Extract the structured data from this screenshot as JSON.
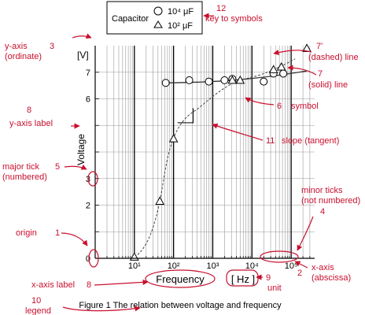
{
  "legend_box": {
    "title": "Capacitor",
    "entries": [
      {
        "symbol": "circle-icon",
        "label": "10⁴ μF"
      },
      {
        "symbol": "triangle-icon",
        "label": "10² μF"
      }
    ]
  },
  "axes": {
    "y_unit": "[V]",
    "y_label": "Voltage",
    "y_ticks": [
      "0",
      "2",
      "3",
      "6",
      "7"
    ],
    "x_label": "Frequency",
    "x_unit": "[ Hz ]",
    "x_ticks": [
      "10¹",
      "10²",
      "10³",
      "10⁴",
      "10⁵"
    ]
  },
  "caption": "Figure 1  The relation between voltage and frequency",
  "annotations": [
    {
      "id": "12",
      "text": "key to symbols"
    },
    {
      "id": "3",
      "text": "y-axis\n(ordinate)"
    },
    {
      "id": "7'",
      "text": "(dashed) line"
    },
    {
      "id": "7",
      "text": "(solid) line"
    },
    {
      "id": "6",
      "text": "symbol"
    },
    {
      "id": "8",
      "text": "y-axis label"
    },
    {
      "id": "11",
      "text": "slope (tangent)"
    },
    {
      "id": "5",
      "text": "major tick\n(numbered)"
    },
    {
      "id": "4",
      "text": "minor ticks\n(not numbered)"
    },
    {
      "id": "1",
      "text": "origin"
    },
    {
      "id": "2",
      "text": "x-axis\n(abscissa)"
    },
    {
      "id": "8",
      "text": "x-axis label"
    },
    {
      "id": "9",
      "text": "unit"
    },
    {
      "id": "10",
      "text": "legend"
    }
  ],
  "chart_data": {
    "type": "scatter",
    "x_scale": "log",
    "xlim": [
      1,
      100000
    ],
    "ylim": [
      0,
      8
    ],
    "series": [
      {
        "name": "10⁴ μF",
        "marker": "circle",
        "line": "solid",
        "points": [
          [
            1.8,
            6.6
          ],
          [
            2.4,
            6.7
          ],
          [
            2.9,
            6.65
          ],
          [
            3.3,
            6.7
          ],
          [
            3.5,
            6.75
          ],
          [
            4.3,
            6.65
          ],
          [
            4.55,
            6.95
          ],
          [
            4.8,
            6.95
          ]
        ]
      },
      {
        "name": "10² μF",
        "marker": "triangle",
        "line": "dashed",
        "points": [
          [
            1.0,
            0.05
          ],
          [
            1.65,
            2.15
          ],
          [
            2.0,
            4.5
          ],
          [
            3.5,
            6.7
          ],
          [
            3.7,
            6.7
          ],
          [
            4.55,
            7.1
          ],
          [
            4.75,
            7.2
          ],
          [
            5.4,
            7.9
          ]
        ]
      }
    ],
    "colors": {
      "annotation": "#c8102e",
      "plot": "#000000",
      "grid": "#aaaaaa"
    }
  }
}
